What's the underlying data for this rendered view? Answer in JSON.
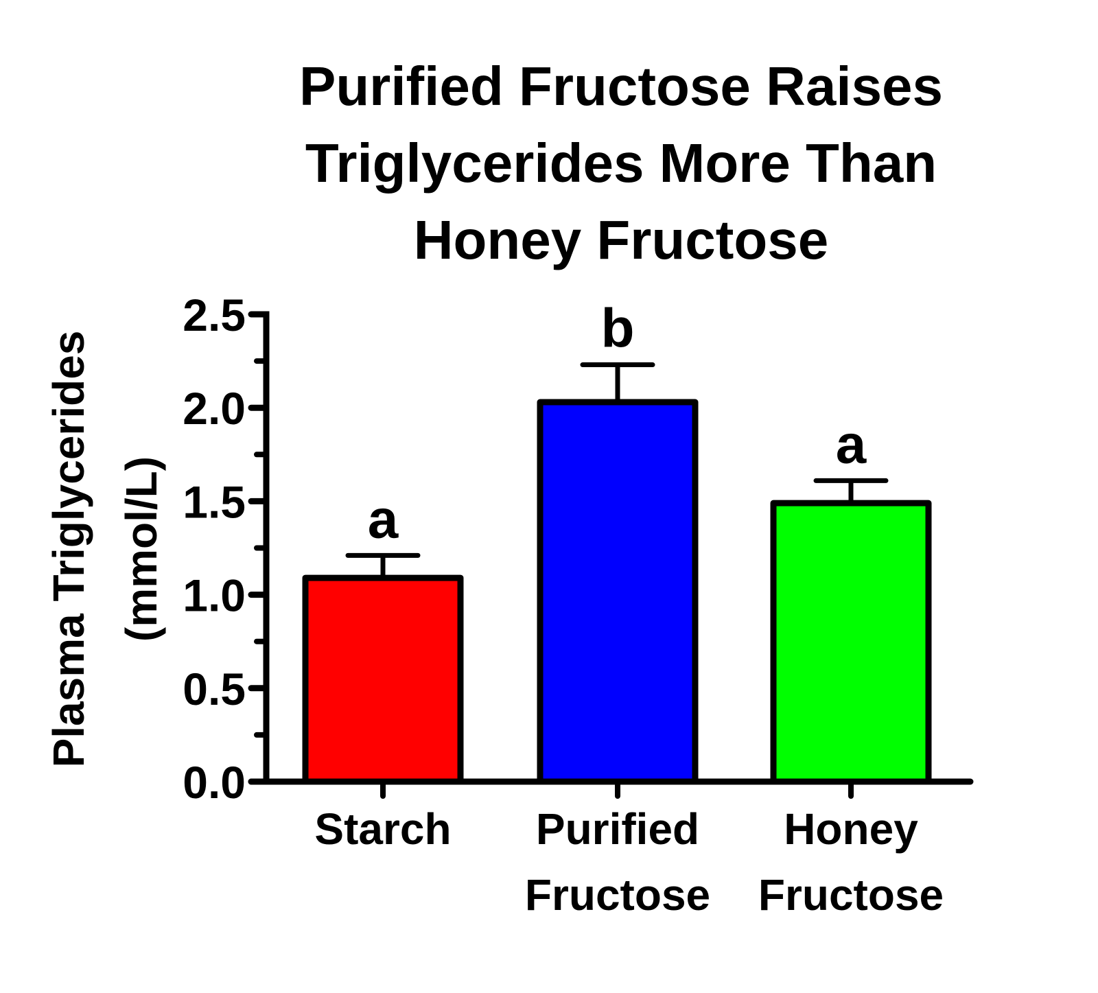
{
  "chart_data": {
    "type": "bar",
    "title": "Purified Fructose Raises Triglycerides More Than Honey Fructose",
    "title_lines": [
      "Purified Fructose Raises",
      "Triglycerides More Than",
      "Honey Fructose"
    ],
    "xlabel": "",
    "ylabel": "Plasma Triglycerides (mmol/L)",
    "ylabel_lines": [
      "Plasma Triglycerides",
      "(mmol/L)"
    ],
    "ylim": [
      0,
      2.5
    ],
    "yticks": [
      "0.0",
      "0.5",
      "1.0",
      "1.5",
      "2.0",
      "2.5"
    ],
    "categories": [
      "Starch",
      "Purified Fructose",
      "Honey Fructose"
    ],
    "category_lines": [
      [
        "Starch"
      ],
      [
        "Purified",
        "Fructose"
      ],
      [
        "Honey",
        "Fructose"
      ]
    ],
    "values": [
      1.09,
      2.03,
      1.49
    ],
    "error_upper": [
      0.12,
      0.2,
      0.12
    ],
    "significance_letters": [
      "a",
      "b",
      "a"
    ],
    "colors": [
      "#ff0000",
      "#0000ff",
      "#00ff00"
    ],
    "grid": false,
    "legend": null
  }
}
